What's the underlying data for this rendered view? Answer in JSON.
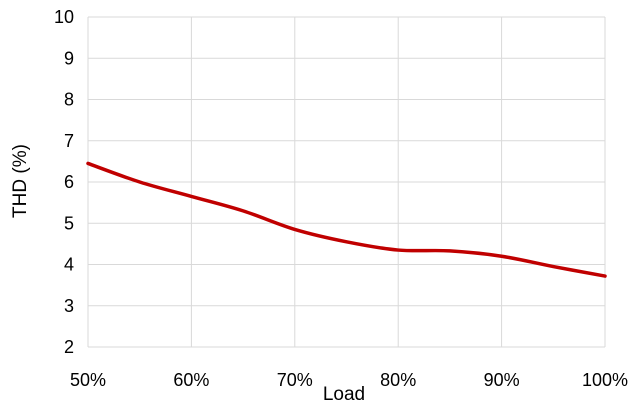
{
  "chart_data": {
    "type": "line",
    "xlabel": "Load",
    "ylabel": "THD (%)",
    "x_tick_labels": [
      "50%",
      "60%",
      "70%",
      "80%",
      "90%",
      "100%"
    ],
    "y_tick_labels": [
      "2",
      "3",
      "4",
      "5",
      "6",
      "7",
      "8",
      "9",
      "10"
    ],
    "xlim": [
      50,
      100
    ],
    "ylim": [
      2,
      10
    ],
    "grid": true,
    "series": [
      {
        "color": "#c00000",
        "x": [
          50,
          55,
          60,
          65,
          70,
          75,
          80,
          85,
          90,
          95,
          100
        ],
        "y": [
          6.45,
          6.0,
          5.65,
          5.3,
          4.85,
          4.55,
          4.35,
          4.33,
          4.2,
          3.95,
          3.72
        ]
      }
    ]
  },
  "colors": {
    "series": "#c00000",
    "grid": "#d9d9d9"
  }
}
